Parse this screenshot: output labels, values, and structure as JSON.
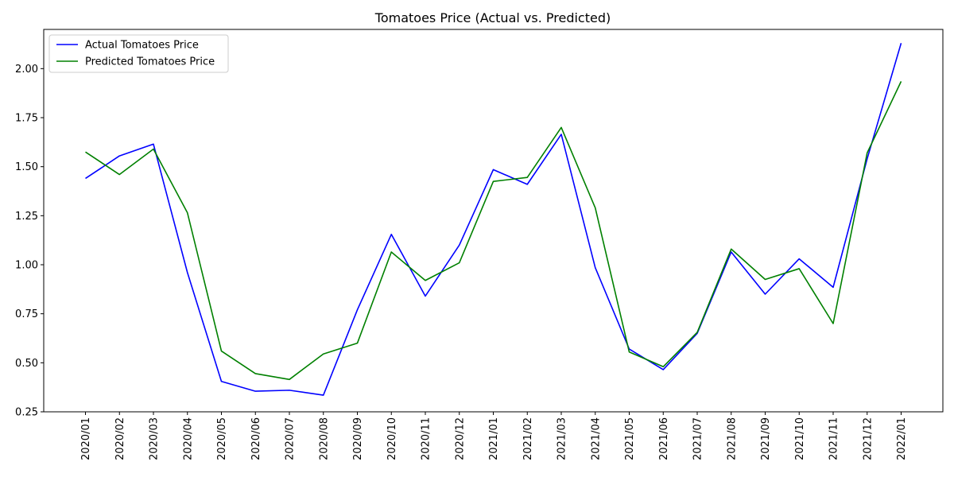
{
  "chart_data": {
    "type": "line",
    "title": "Tomatoes Price (Actual vs. Predicted)",
    "xlabel": "",
    "ylabel": "",
    "ylim": [
      0.25,
      2.2
    ],
    "yticks": [
      0.25,
      0.5,
      0.75,
      1.0,
      1.25,
      1.5,
      1.75,
      2.0
    ],
    "ytick_labels": [
      "0.25",
      "0.50",
      "0.75",
      "1.00",
      "1.25",
      "1.50",
      "1.75",
      "2.00"
    ],
    "grid": false,
    "legend_position": "top-left",
    "categories": [
      "2020/01",
      "2020/02",
      "2020/03",
      "2020/04",
      "2020/05",
      "2020/06",
      "2020/07",
      "2020/08",
      "2020/09",
      "2020/10",
      "2020/11",
      "2020/12",
      "2021/01",
      "2021/02",
      "2021/03",
      "2021/04",
      "2021/05",
      "2021/06",
      "2021/07",
      "2021/08",
      "2021/09",
      "2021/10",
      "2021/11",
      "2021/12",
      "2022/01"
    ],
    "series": [
      {
        "name": "Actual Tomatoes Price",
        "color": "#0000ff",
        "values": [
          1.44,
          1.555,
          1.615,
          0.96,
          0.405,
          0.355,
          0.36,
          0.335,
          0.77,
          1.155,
          0.84,
          1.1,
          1.485,
          1.41,
          1.665,
          0.985,
          0.57,
          0.465,
          0.65,
          1.065,
          0.85,
          1.03,
          0.885,
          1.54,
          2.13
        ]
      },
      {
        "name": "Predicted Tomatoes Price",
        "color": "#008000",
        "values": [
          1.575,
          1.46,
          1.59,
          1.265,
          0.56,
          0.445,
          0.415,
          0.545,
          0.6,
          1.065,
          0.92,
          1.01,
          1.425,
          1.445,
          1.7,
          1.29,
          0.555,
          0.48,
          0.655,
          1.08,
          0.925,
          0.98,
          0.7,
          1.57,
          1.935
        ]
      }
    ]
  }
}
